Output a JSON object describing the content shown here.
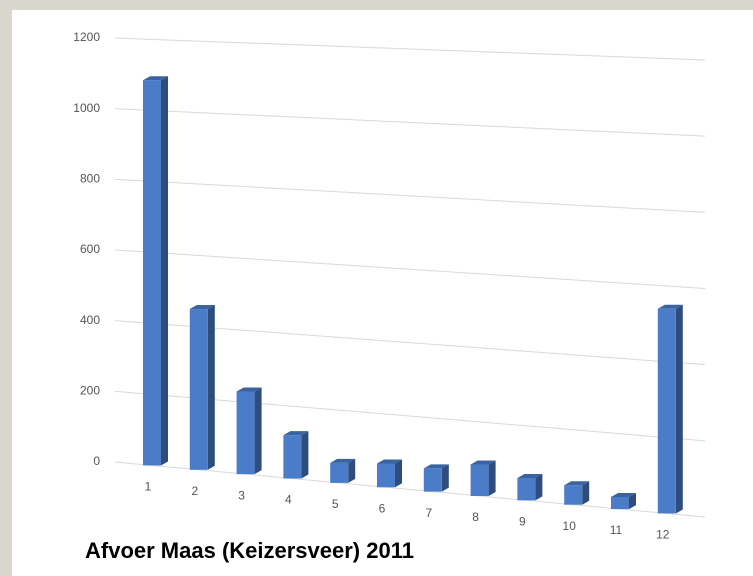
{
  "chart_data": {
    "type": "bar",
    "title": "Afvoer Maas (Keizersveer) 2011",
    "categories": [
      "1",
      "2",
      "3",
      "4",
      "5",
      "6",
      "7",
      "8",
      "9",
      "10",
      "11",
      "12"
    ],
    "values": [
      1085,
      450,
      230,
      120,
      55,
      65,
      63,
      85,
      60,
      52,
      32,
      540
    ],
    "color": "#4a7cc8",
    "ylim": [
      0,
      1200
    ],
    "yticks": [
      0,
      200,
      400,
      600,
      800,
      1000,
      1200
    ],
    "grid": true
  }
}
